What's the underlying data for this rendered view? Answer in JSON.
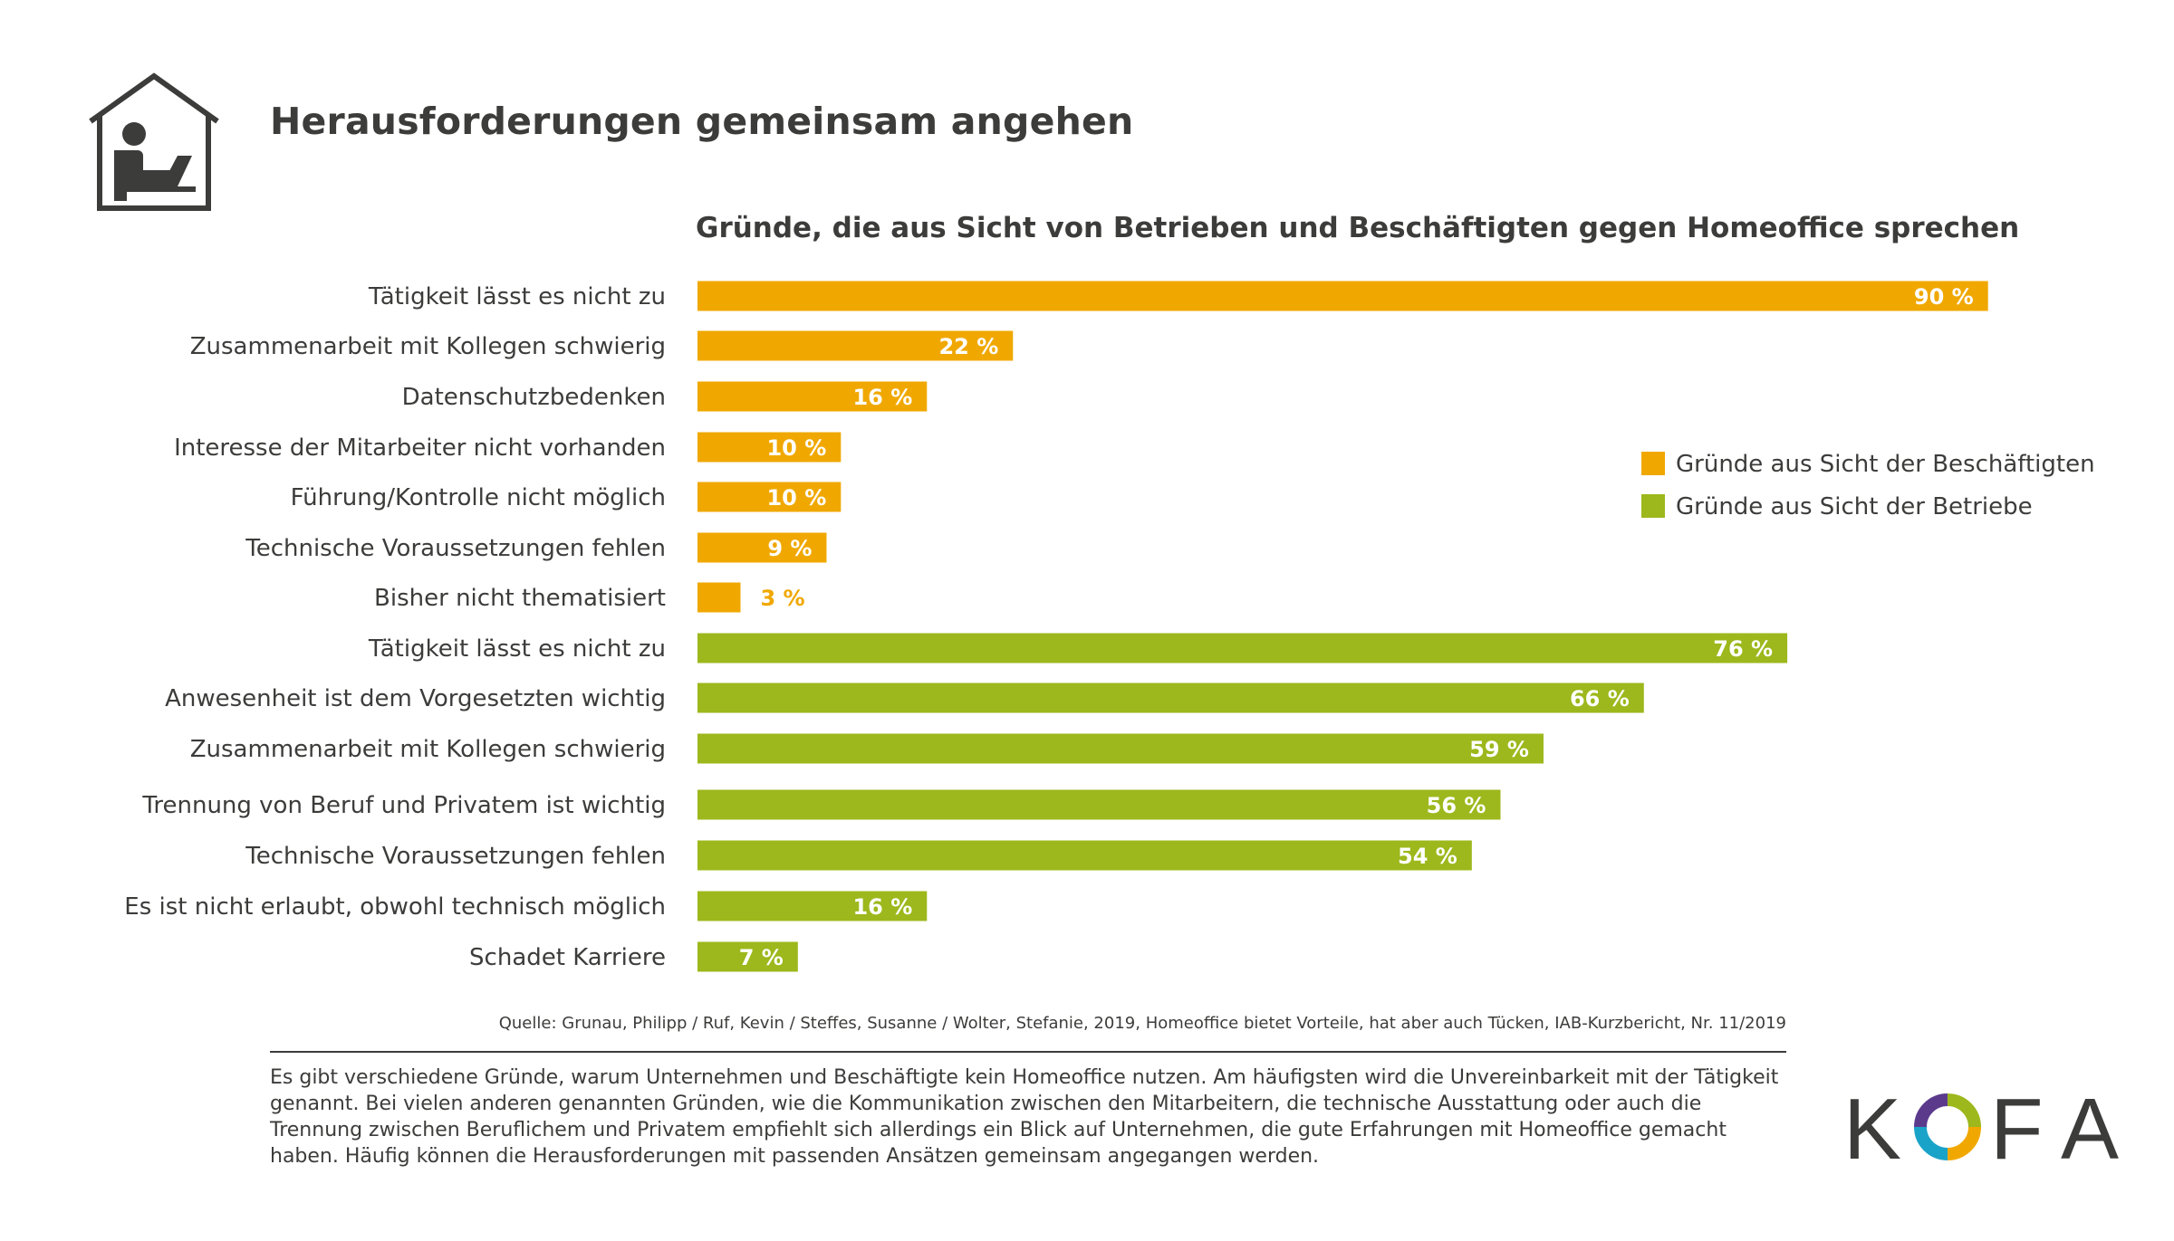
{
  "title": "Herausforderungen gemeinsam angehen",
  "chart_data": {
    "type": "bar",
    "orientation": "horizontal",
    "title": "Gründe, die aus Sicht von Betrieben und Beschäftigten gegen Homeoffice sprechen",
    "xlabel": "",
    "ylabel": "",
    "xlim": [
      0,
      100
    ],
    "grid": false,
    "legend_position": "right",
    "series": [
      {
        "name": "Gründe aus Sicht der Beschäftigten",
        "color": "#f0a800",
        "categories": [
          "Tätigkeit lässt es nicht zu",
          "Zusammenarbeit mit Kollegen schwierig",
          "Datenschutzbedenken",
          "Interesse der Mitarbeiter nicht vorhanden",
          "Führung/Kontrolle nicht möglich",
          "Technische Voraussetzungen fehlen",
          "Bisher nicht thematisiert"
        ],
        "values": [
          90,
          22,
          16,
          10,
          10,
          9,
          3
        ],
        "labels": [
          "90 %",
          "22 %",
          "16 %",
          "10 %",
          "10 %",
          "9 %",
          "3 %"
        ]
      },
      {
        "name": "Gründe aus Sicht der Betriebe",
        "color": "#9cb81c",
        "categories": [
          "Tätigkeit lässt es nicht zu",
          "Anwesenheit ist dem Vorgesetzten wichtig",
          "Zusammenarbeit mit Kollegen schwierig",
          "Trennung von Beruf und Privatem ist wichtig",
          "Technische Voraussetzungen fehlen",
          "Es ist nicht erlaubt, obwohl technisch möglich",
          "Schadet Karriere"
        ],
        "values": [
          76,
          66,
          59,
          56,
          54,
          16,
          7
        ],
        "labels": [
          "76 %",
          "66 %",
          "59 %",
          "56 %",
          "54 %",
          "16 %",
          "7 %"
        ]
      }
    ]
  },
  "source": "Quelle: Grunau, Philipp / Ruf, Kevin / Steffes, Susanne / Wolter, Stefanie, 2019, Homeoffice bietet Vorteile, hat aber auch Tücken, IAB-Kurzbericht, Nr. 11/2019",
  "summary": "Es gibt verschiedene Gründe, warum Unternehmen und Beschäftigte kein Homeoffice nutzen. Am häufigsten wird die Unvereinbarkeit mit der Tätigkeit genannt. Bei vielen anderen genannten Gründen, wie die Kommunikation zwischen den Mitarbeitern, die technische Ausstattung oder auch die Trennung zwischen Beruflichem und Privatem empfiehlt sich allerdings ein Blick auf Unternehmen, die gute Erfahrungen mit Homeoffice gemacht haben. Häufig können die Herausforderungen mit passenden Ansätzen gemeinsam angegangen werden.",
  "logo": {
    "text": "KOFA",
    "letters": [
      "K",
      "F",
      "A"
    ]
  },
  "icons": {
    "header": "home-office-icon",
    "logo": "kofa-logo"
  }
}
